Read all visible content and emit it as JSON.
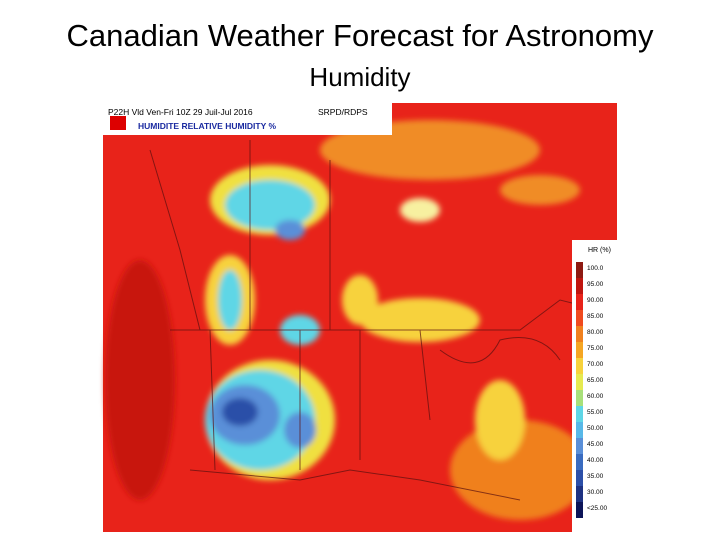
{
  "slide": {
    "title": "Canadian Weather Forecast for Astronomy",
    "subtitle": "Humidity"
  },
  "map": {
    "header_line1": "P22H Vld Ven-Fri 10Z 29 Juil-Jul 2016",
    "source": "SRPD/RDPS",
    "header_line2": "HUMIDITE RELATIVE HUMIDITY %",
    "legend": {
      "title": "HR (%)",
      "labels": [
        "100.0",
        "95.00",
        "90.00",
        "85.00",
        "80.00",
        "75.00",
        "70.00",
        "65.00",
        "60.00",
        "55.00",
        "50.00",
        "45.00",
        "40.00",
        "35.00",
        "30.00",
        "<25.00"
      ]
    }
  }
}
